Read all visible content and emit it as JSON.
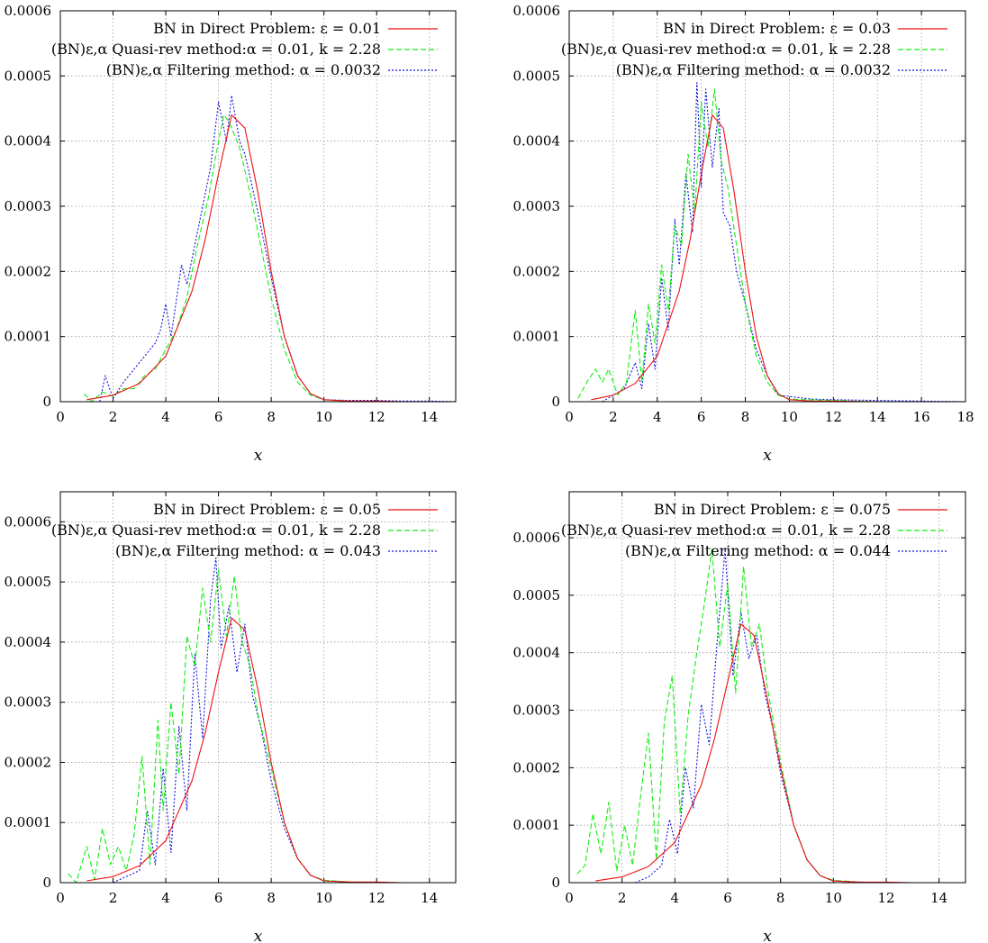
{
  "colors": {
    "direct": "#ee1111",
    "quasi": "#11ee11",
    "filtering": "#1111dd",
    "grid": "#9a9a9a"
  },
  "chart_data": [
    {
      "type": "line",
      "xlabel": "x",
      "ylabel": "",
      "xlim": [
        0,
        15
      ],
      "ylim": [
        0,
        0.0006
      ],
      "xticks": [
        "0",
        "2",
        "4",
        "6",
        "8",
        "10",
        "12",
        "14"
      ],
      "yticks": [
        "0",
        "0.0001",
        "0.0002",
        "0.0003",
        "0.0004",
        "0.0005",
        "0.0006"
      ],
      "legend_position": "top-right",
      "grid": true,
      "series": [
        {
          "name": "BN in Direct Problem: ε = 0.01",
          "style": "solid",
          "color": "#ee1111",
          "x": [
            1,
            2,
            3,
            4,
            5,
            5.5,
            6,
            6.5,
            7,
            7.5,
            8,
            8.5,
            9,
            9.5,
            10,
            11,
            12,
            13,
            14,
            15
          ],
          "y": [
            3e-06,
            1e-05,
            2.8e-05,
            7e-05,
            0.00017,
            0.00025,
            0.00035,
            0.00044,
            0.00042,
            0.00032,
            0.0002,
            0.0001,
            4e-05,
            1.2e-05,
            3e-06,
            1e-06,
            1e-06,
            0,
            0,
            0
          ]
        },
        {
          "name": "(BN)ε,α Quasi-rev method:α = 0.01, k = 2.28",
          "style": "dashed",
          "color": "#11ee11",
          "x": [
            0.9,
            1.2,
            1.6,
            2,
            2.4,
            2.8,
            3.2,
            3.6,
            4,
            4.4,
            4.8,
            5.2,
            5.6,
            6,
            6.2,
            6.4,
            6.8,
            7.2,
            7.6,
            8,
            8.5,
            9,
            9.5,
            10,
            11,
            12,
            13,
            14,
            15
          ],
          "y": [
            1.2e-05,
            0,
            1.5e-05,
            8e-06,
            2e-05,
            2e-05,
            4e-05,
            5e-05,
            8e-05,
            0.00011,
            0.00016,
            0.00024,
            0.00031,
            0.0004,
            0.00044,
            0.00043,
            0.00039,
            0.00032,
            0.00024,
            0.00016,
            8e-05,
            3e-05,
            1e-05,
            3e-06,
            0,
            0,
            0,
            0,
            0
          ]
        },
        {
          "name": "(BN)ε,α Filtering method: α = 0.0032",
          "style": "dotted",
          "color": "#1111dd",
          "x": [
            1.5,
            1.7,
            2,
            2.4,
            2.8,
            3.2,
            3.6,
            3.8,
            4,
            4.2,
            4.6,
            4.8,
            5,
            5.2,
            5.5,
            5.7,
            6,
            6.3,
            6.5,
            6.8,
            7,
            7.5,
            8,
            8.5,
            9,
            9.5,
            10,
            11,
            12,
            13,
            14,
            15
          ],
          "y": [
            0,
            4e-05,
            5e-06,
            3e-05,
            5e-05,
            7e-05,
            9e-05,
            0.00011,
            0.00015,
            0.0001,
            0.00021,
            0.00018,
            0.00022,
            0.00026,
            0.00032,
            0.00036,
            0.00046,
            0.0004,
            0.00047,
            0.0004,
            0.00038,
            0.00029,
            0.00019,
            0.0001,
            4e-05,
            1.2e-05,
            3e-06,
            2e-06,
            2e-06,
            1e-06,
            1e-06,
            0
          ]
        }
      ]
    },
    {
      "type": "line",
      "xlabel": "x",
      "ylabel": "",
      "xlim": [
        0,
        18
      ],
      "ylim": [
        0,
        0.0006
      ],
      "xticks": [
        "0",
        "2",
        "4",
        "6",
        "8",
        "10",
        "12",
        "14",
        "16",
        "18"
      ],
      "yticks": [
        "0",
        "0.0001",
        "0.0002",
        "0.0003",
        "0.0004",
        "0.0005",
        "0.0006"
      ],
      "legend_position": "top-right",
      "grid": true,
      "series": [
        {
          "name": "BN in Direct Problem: ε = 0.03",
          "style": "solid",
          "color": "#ee1111",
          "x": [
            1,
            2,
            3,
            4,
            5,
            5.5,
            6,
            6.5,
            7,
            7.5,
            8,
            8.5,
            9,
            9.5,
            10,
            11,
            12,
            14,
            16,
            18
          ],
          "y": [
            3e-06,
            1e-05,
            2.8e-05,
            7e-05,
            0.00017,
            0.00025,
            0.00035,
            0.00044,
            0.00042,
            0.00032,
            0.0002,
            0.0001,
            4e-05,
            1.2e-05,
            3e-06,
            1e-06,
            1e-06,
            0,
            0,
            0
          ]
        },
        {
          "name": "(BN)ε,α Quasi-rev method:α = 0.01, k = 2.28",
          "style": "dashed",
          "color": "#11ee11",
          "x": [
            0.4,
            0.8,
            1.2,
            1.5,
            1.8,
            2.2,
            2.6,
            3,
            3.3,
            3.6,
            3.9,
            4.2,
            4.5,
            4.8,
            5.1,
            5.4,
            5.7,
            6,
            6.3,
            6.6,
            6.9,
            7.2,
            7.6,
            8,
            8.5,
            9,
            9.5,
            10,
            12,
            14,
            16,
            18
          ],
          "y": [
            5e-06,
            3e-05,
            5e-05,
            3e-05,
            5e-05,
            1e-05,
            3e-05,
            0.00014,
            3e-05,
            0.00015,
            9e-05,
            0.00021,
            0.00014,
            0.00027,
            0.00024,
            0.00038,
            0.00029,
            0.00046,
            0.00039,
            0.00048,
            0.00037,
            0.00033,
            0.00024,
            0.00015,
            7e-05,
            3e-05,
            1e-05,
            4e-06,
            2e-06,
            0,
            0,
            0
          ]
        },
        {
          "name": "(BN)ε,α Filtering method: α = 0.0032",
          "style": "dotted",
          "color": "#1111dd",
          "x": [
            1.5,
            2,
            2.5,
            3,
            3.3,
            3.6,
            3.9,
            4.2,
            4.5,
            4.8,
            5,
            5.3,
            5.6,
            5.8,
            6,
            6.2,
            6.5,
            6.8,
            7,
            7.3,
            7.6,
            8,
            8.5,
            9,
            9.5,
            10,
            11,
            12,
            14,
            16,
            18
          ],
          "y": [
            0,
            1e-05,
            2e-05,
            6e-05,
            2e-05,
            0.00012,
            5e-05,
            0.00019,
            0.00011,
            0.00028,
            0.00021,
            0.00035,
            0.00026,
            0.00049,
            0.00033,
            0.00048,
            0.00036,
            0.00045,
            0.00029,
            0.00027,
            0.0002,
            0.00015,
            8e-05,
            4e-05,
            1e-05,
            8e-06,
            4e-06,
            3e-06,
            2e-06,
            1e-06,
            0
          ]
        }
      ]
    },
    {
      "type": "line",
      "xlabel": "x",
      "ylabel": "",
      "xlim": [
        0,
        15
      ],
      "ylim": [
        0,
        0.00065
      ],
      "xticks": [
        "0",
        "2",
        "4",
        "6",
        "8",
        "10",
        "12",
        "14"
      ],
      "yticks": [
        "0",
        "0.0001",
        "0.0002",
        "0.0003",
        "0.0004",
        "0.0005",
        "0.0006"
      ],
      "legend_position": "top-right",
      "grid": true,
      "series": [
        {
          "name": "BN in Direct Problem: ε = 0.05",
          "style": "solid",
          "color": "#ee1111",
          "x": [
            1,
            2,
            3,
            4,
            5,
            5.5,
            6,
            6.5,
            7,
            7.5,
            8,
            8.5,
            9,
            9.5,
            10,
            11,
            12,
            13,
            14,
            15
          ],
          "y": [
            3e-06,
            1e-05,
            2.8e-05,
            7e-05,
            0.00017,
            0.00025,
            0.00035,
            0.00044,
            0.00042,
            0.00032,
            0.0002,
            0.0001,
            4e-05,
            1.2e-05,
            3e-06,
            1e-06,
            1e-06,
            0,
            0,
            0
          ]
        },
        {
          "name": "(BN)ε,α Quasi-rev method:α = 0.01, k = 2.28",
          "style": "dashed",
          "color": "#11ee11",
          "x": [
            0.3,
            0.6,
            1,
            1.3,
            1.6,
            1.9,
            2.2,
            2.5,
            2.8,
            3.1,
            3.4,
            3.7,
            3.9,
            4.2,
            4.5,
            4.8,
            5.1,
            5.4,
            5.7,
            6,
            6.3,
            6.6,
            6.9,
            7.2,
            7.5,
            8,
            8.5,
            9,
            9.5,
            10,
            11,
            12,
            13,
            14,
            15
          ],
          "y": [
            1.5e-05,
            0,
            6e-05,
            5e-06,
            9e-05,
            3e-05,
            6e-05,
            2e-05,
            8e-05,
            0.00021,
            3e-05,
            0.00027,
            0.00012,
            0.0003,
            0.00018,
            0.00041,
            0.00036,
            0.00049,
            0.0004,
            0.00052,
            0.00041,
            0.00051,
            0.0004,
            0.00036,
            0.00028,
            0.00019,
            0.0001,
            4e-05,
            1.2e-05,
            4e-06,
            1e-06,
            0,
            0,
            0,
            0
          ]
        },
        {
          "name": "(BN)ε,α Filtering method: α = 0.043",
          "style": "dotted",
          "color": "#1111dd",
          "x": [
            2,
            2.5,
            3,
            3.3,
            3.6,
            3.9,
            4.2,
            4.5,
            4.8,
            5.1,
            5.4,
            5.7,
            5.9,
            6.1,
            6.4,
            6.7,
            7,
            7.3,
            7.6,
            8,
            8.5,
            9,
            9.5,
            10,
            11,
            12,
            13,
            14,
            15
          ],
          "y": [
            0,
            1e-05,
            2e-05,
            0.00012,
            3e-05,
            0.00019,
            5e-05,
            0.00026,
            0.00012,
            0.00038,
            0.00024,
            0.00047,
            0.00054,
            0.00039,
            0.00046,
            0.00035,
            0.00043,
            0.00031,
            0.00026,
            0.00017,
            9e-05,
            4e-05,
            1.2e-05,
            3e-06,
            1e-06,
            0,
            0,
            0,
            0
          ]
        }
      ]
    },
    {
      "type": "line",
      "xlabel": "x",
      "ylabel": "",
      "xlim": [
        0,
        15
      ],
      "ylim": [
        0,
        0.00068
      ],
      "xticks": [
        "0",
        "2",
        "4",
        "6",
        "8",
        "10",
        "12",
        "14"
      ],
      "yticks": [
        "0",
        "0.0001",
        "0.0002",
        "0.0003",
        "0.0004",
        "0.0005",
        "0.0006"
      ],
      "legend_position": "top-right",
      "grid": true,
      "series": [
        {
          "name": "BN in Direct Problem: ε = 0.075",
          "style": "solid",
          "color": "#ee1111",
          "x": [
            1,
            2,
            3,
            4,
            5,
            5.5,
            6,
            6.5,
            7,
            7.5,
            8,
            8.5,
            9,
            9.5,
            10,
            11,
            12,
            13,
            14,
            15
          ],
          "y": [
            3e-06,
            1e-05,
            2.8e-05,
            7e-05,
            0.00017,
            0.00025,
            0.00035,
            0.00045,
            0.00043,
            0.00032,
            0.0002,
            0.0001,
            4e-05,
            1.2e-05,
            3e-06,
            1e-06,
            1e-06,
            0,
            0,
            0
          ]
        },
        {
          "name": "(BN)ε,α Quasi-rev method:α = 0.01, k = 2.28",
          "style": "dashed",
          "color": "#11ee11",
          "x": [
            0.3,
            0.6,
            0.9,
            1.2,
            1.5,
            1.8,
            2.1,
            2.4,
            2.7,
            3,
            3.3,
            3.6,
            3.9,
            4.2,
            4.5,
            4.8,
            5.1,
            5.4,
            5.7,
            6,
            6.3,
            6.6,
            6.9,
            7.2,
            7.5,
            8,
            8.5,
            9,
            9.5,
            10,
            11,
            12,
            13,
            14,
            15
          ],
          "y": [
            1.5e-05,
            3e-05,
            0.00012,
            5e-05,
            0.00014,
            2e-05,
            0.0001,
            3e-05,
            0.00015,
            0.00026,
            4e-05,
            0.00028,
            0.00036,
            0.00012,
            0.00029,
            0.00039,
            0.00048,
            0.00058,
            0.00041,
            0.00052,
            0.00033,
            0.00055,
            0.00041,
            0.00045,
            0.00034,
            0.00021,
            0.0001,
            4e-05,
            1.2e-05,
            4e-06,
            1e-06,
            0,
            0,
            0,
            0
          ]
        },
        {
          "name": "(BN)ε,α Filtering method: α = 0.044",
          "style": "dotted",
          "color": "#1111dd",
          "x": [
            2.5,
            3,
            3.5,
            3.8,
            4.1,
            4.4,
            4.7,
            5,
            5.3,
            5.6,
            5.9,
            6.2,
            6.5,
            6.8,
            7.1,
            7.4,
            7.7,
            8,
            8.5,
            9,
            9.5,
            10,
            11,
            12,
            13,
            14,
            15
          ],
          "y": [
            0,
            1e-05,
            3e-05,
            0.00011,
            5e-05,
            0.0002,
            0.00013,
            0.00031,
            0.00024,
            0.00042,
            0.00058,
            0.00036,
            0.00047,
            0.00039,
            0.00043,
            0.00033,
            0.00027,
            0.00019,
            0.0001,
            4e-05,
            1.2e-05,
            3e-06,
            1e-06,
            0,
            0,
            0,
            0
          ]
        }
      ]
    }
  ]
}
